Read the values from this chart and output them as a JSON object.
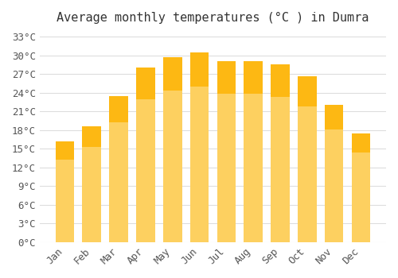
{
  "months": [
    "Jan",
    "Feb",
    "Mar",
    "Apr",
    "May",
    "Jun",
    "Jul",
    "Aug",
    "Sep",
    "Oct",
    "Nov",
    "Dec"
  ],
  "temperatures": [
    16.2,
    18.6,
    23.5,
    28.0,
    29.7,
    30.5,
    29.1,
    29.1,
    28.5,
    26.6,
    22.0,
    17.5
  ],
  "bar_color_top": "#FDB813",
  "bar_color_bottom": "#FDD060",
  "title": "Average monthly temperatures (°C ) in Dumra",
  "ylabel": "",
  "xlabel": "",
  "ylim": [
    0,
    34
  ],
  "yticks": [
    0,
    3,
    6,
    9,
    12,
    15,
    18,
    21,
    24,
    27,
    30,
    33
  ],
  "ytick_labels": [
    "0°C",
    "3°C",
    "6°C",
    "9°C",
    "12°C",
    "15°C",
    "18°C",
    "21°C",
    "24°C",
    "27°C",
    "30°C",
    "33°C"
  ],
  "background_color": "#ffffff",
  "grid_color": "#dddddd",
  "title_fontsize": 11,
  "tick_fontsize": 9,
  "font_family": "monospace"
}
